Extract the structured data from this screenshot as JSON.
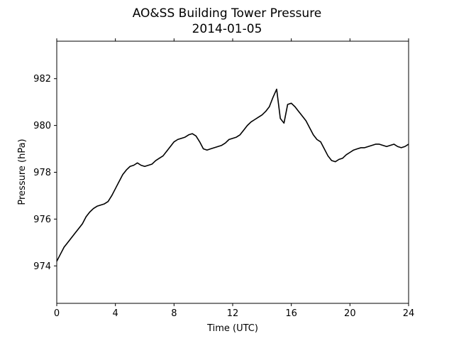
{
  "chart_data": {
    "type": "line",
    "title": "AO&SS Building Tower Pressure",
    "subtitle": "2014-01-05",
    "xlabel": "Time (UTC)",
    "ylabel": "Pressure (hPa)",
    "xlim": [
      0,
      24
    ],
    "ylim": [
      972.4,
      983.6
    ],
    "xticks": [
      0,
      4,
      8,
      12,
      16,
      20,
      24
    ],
    "yticks": [
      974,
      976,
      978,
      980,
      982
    ],
    "grid": false,
    "line_color": "#000000",
    "series": [
      {
        "x": [
          0.0,
          0.25,
          0.5,
          0.75,
          1.0,
          1.25,
          1.5,
          1.75,
          2.0,
          2.25,
          2.5,
          2.75,
          3.0,
          3.25,
          3.5,
          3.75,
          4.0,
          4.25,
          4.5,
          4.75,
          5.0,
          5.25,
          5.5,
          5.75,
          6.0,
          6.25,
          6.5,
          6.75,
          7.0,
          7.25,
          7.5,
          7.75,
          8.0,
          8.25,
          8.5,
          8.75,
          9.0,
          9.25,
          9.5,
          9.75,
          10.0,
          10.25,
          10.5,
          10.75,
          11.0,
          11.25,
          11.5,
          11.75,
          12.0,
          12.25,
          12.5,
          12.75,
          13.0,
          13.25,
          13.5,
          13.75,
          14.0,
          14.25,
          14.5,
          14.75,
          15.0,
          15.25,
          15.5,
          15.75,
          16.0,
          16.25,
          16.5,
          16.75,
          17.0,
          17.25,
          17.5,
          17.75,
          18.0,
          18.25,
          18.5,
          18.75,
          19.0,
          19.25,
          19.5,
          19.75,
          20.0,
          20.25,
          20.5,
          20.75,
          21.0,
          21.25,
          21.5,
          21.75,
          22.0,
          22.25,
          22.5,
          22.75,
          23.0,
          23.25,
          23.5,
          23.75,
          24.0
        ],
        "y": [
          974.2,
          974.5,
          974.8,
          975.0,
          975.2,
          975.4,
          975.6,
          975.8,
          976.1,
          976.3,
          976.45,
          976.55,
          976.6,
          976.65,
          976.75,
          977.0,
          977.3,
          977.6,
          977.9,
          978.1,
          978.25,
          978.3,
          978.4,
          978.3,
          978.25,
          978.3,
          978.35,
          978.5,
          978.6,
          978.7,
          978.9,
          979.1,
          979.3,
          979.4,
          979.45,
          979.5,
          979.6,
          979.65,
          979.55,
          979.3,
          979.0,
          978.95,
          979.0,
          979.05,
          979.1,
          979.15,
          979.25,
          979.4,
          979.45,
          979.5,
          979.6,
          979.8,
          980.0,
          980.15,
          980.25,
          980.35,
          980.45,
          980.6,
          980.8,
          981.2,
          981.55,
          980.3,
          980.1,
          980.9,
          980.95,
          980.8,
          980.6,
          980.4,
          980.2,
          979.9,
          979.6,
          979.4,
          979.3,
          979.0,
          978.7,
          978.5,
          978.45,
          978.55,
          978.6,
          978.75,
          978.85,
          978.95,
          979.0,
          979.05,
          979.05,
          979.1,
          979.15,
          979.2,
          979.2,
          979.15,
          979.1,
          979.15,
          979.2,
          979.1,
          979.05,
          979.1,
          979.2
        ]
      }
    ]
  }
}
